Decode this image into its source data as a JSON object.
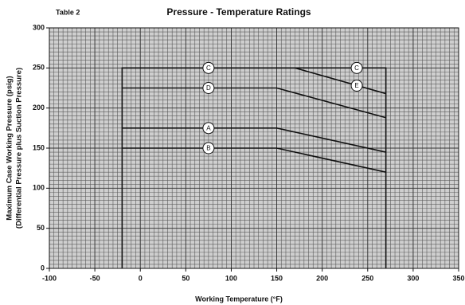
{
  "chart_data": {
    "type": "line",
    "table_label": "Table 2",
    "title": "Pressure - Temperature Ratings",
    "x_label": "Working Temperature (°F)",
    "y_label": [
      "Maximum Case Working Pressure (psig)",
      "(Differential Pressure plus Suction Pressure)"
    ],
    "xlim": [
      -100,
      350
    ],
    "ylim": [
      0,
      300
    ],
    "xticks": [
      -100,
      -50,
      0,
      50,
      100,
      150,
      200,
      250,
      300,
      350
    ],
    "yticks": [
      0,
      50,
      100,
      150,
      200,
      250,
      300
    ],
    "grid": true,
    "minor_grid_step": 5,
    "color": "#111111",
    "boundary": {
      "x": [
        -20,
        -20,
        270,
        270
      ],
      "values": [
        0,
        250,
        250,
        0
      ]
    },
    "series": [
      {
        "x": [
          -20,
          170,
          270
        ],
        "values": [
          250,
          250,
          218
        ]
      },
      {
        "x": [
          -20,
          150,
          270
        ],
        "values": [
          225,
          225,
          188
        ]
      },
      {
        "x": [
          -20,
          150,
          270
        ],
        "values": [
          175,
          175,
          145
        ]
      },
      {
        "x": [
          -20,
          150,
          270
        ],
        "values": [
          150,
          150,
          120
        ]
      }
    ],
    "annotations": [
      {
        "text": "C",
        "x": 75,
        "y": 250
      },
      {
        "text": "C",
        "x": 238,
        "y": 250
      },
      {
        "text": "D",
        "x": 75,
        "y": 225
      },
      {
        "text": "E",
        "x": 238,
        "y": 228
      },
      {
        "text": "A",
        "x": 75,
        "y": 175
      },
      {
        "text": "B",
        "x": 75,
        "y": 150
      }
    ]
  }
}
